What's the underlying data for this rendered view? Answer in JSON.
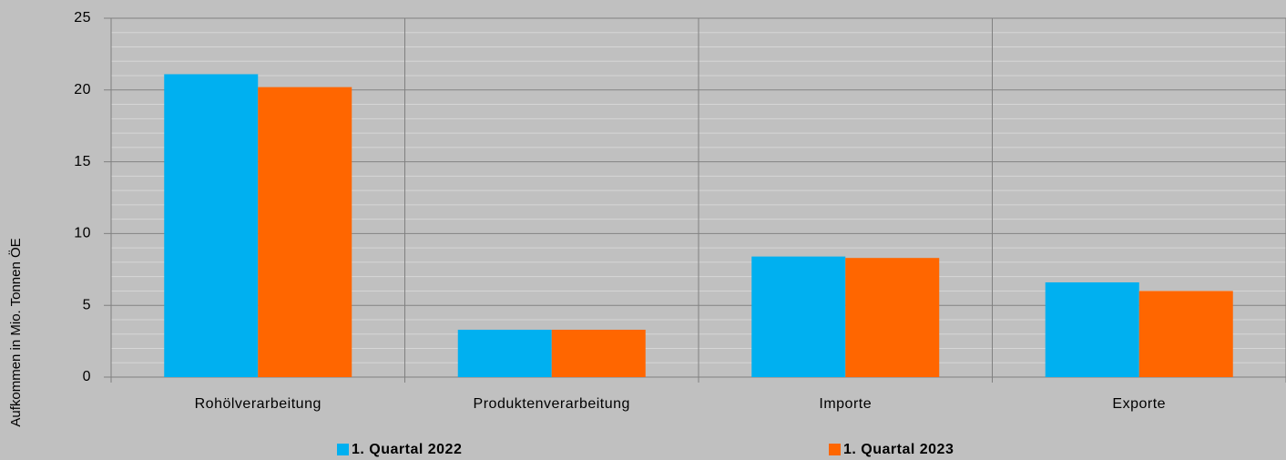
{
  "chart_data": {
    "type": "bar",
    "y_label": "Aufkommen  in Mio. Tonnen ÖE",
    "categories": [
      "Rohölverarbeitung",
      "Produktenverarbeitung",
      "Importe",
      "Exporte"
    ],
    "series": [
      {
        "name": "1. Quartal 2022",
        "color": "#00b0f0",
        "values": [
          21.1,
          3.3,
          8.4,
          6.6
        ]
      },
      {
        "name": "1. Quartal 2023",
        "color": "#ff6600",
        "values": [
          20.2,
          3.3,
          8.3,
          6.0
        ]
      }
    ],
    "ylim": [
      0,
      25
    ],
    "yticks": [
      0,
      5,
      10,
      15,
      20,
      25
    ],
    "grid": true,
    "minor_grid": true,
    "legend": "bottom"
  }
}
